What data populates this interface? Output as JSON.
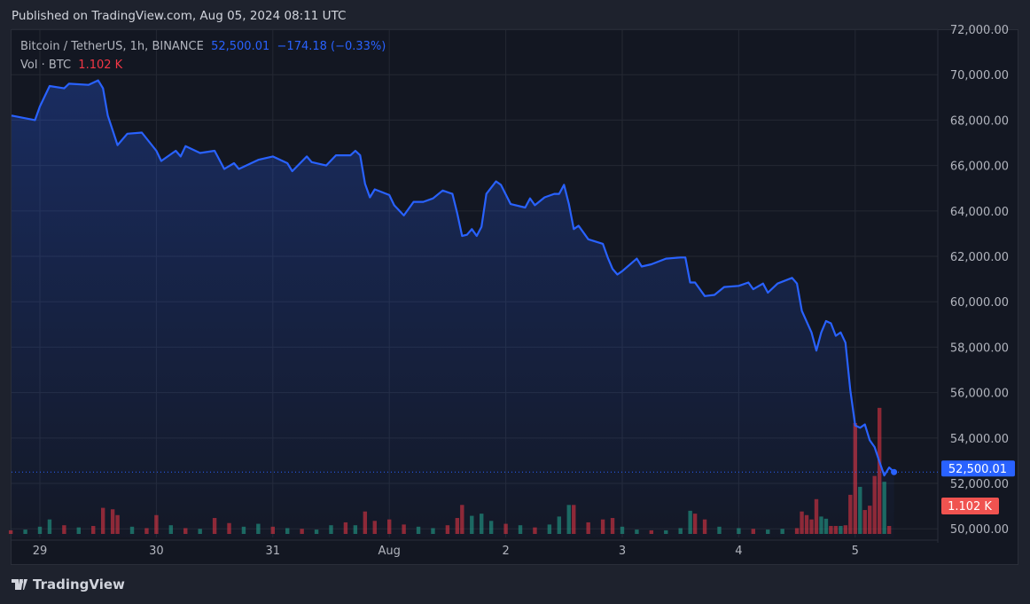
{
  "header": {
    "published": "Published on TradingView.com, Aug 05, 2024 08:11 UTC"
  },
  "legend": {
    "symbol": "Bitcoin / TetherUS, 1h, BINANCE",
    "last_price": "52,500.01",
    "change": "−174.18 (−0.33%)",
    "volume_label": "Vol · BTC",
    "volume_value": "1.102 K"
  },
  "branding": {
    "name": "TradingView",
    "icon": "tradingview-logo-icon"
  },
  "colors": {
    "line": "#2962ff",
    "up": "#22ab94",
    "down": "#f23645",
    "price_tag": "#2962ff",
    "volume_tag": "#f05350"
  },
  "chart_data": {
    "type": "area",
    "ylim": [
      50000,
      72000
    ],
    "y_ticks": [
      "72,000.00",
      "70,000.00",
      "68,000.00",
      "66,000.00",
      "64,000.00",
      "62,000.00",
      "60,000.00",
      "58,000.00",
      "56,000.00",
      "54,000.00",
      "52,000.00",
      "50,000.00"
    ],
    "x_ticks": [
      {
        "label": "29",
        "date": "2024-07-29T00:00"
      },
      {
        "label": "30",
        "date": "2024-07-30T00:00"
      },
      {
        "label": "31",
        "date": "2024-07-31T00:00"
      },
      {
        "label": "Aug",
        "date": "2024-08-01T00:00"
      },
      {
        "label": "2",
        "date": "2024-08-02T00:00"
      },
      {
        "label": "3",
        "date": "2024-08-03T00:00"
      },
      {
        "label": "4",
        "date": "2024-08-04T00:00"
      },
      {
        "label": "5",
        "date": "2024-08-05T00:00"
      }
    ],
    "grid": true,
    "price_label": "52,500.01",
    "volume_label": "1.102 K",
    "series": [
      {
        "points": [
          [
            "2024-07-28T18:00",
            68200
          ],
          [
            "2024-07-28T23:00",
            68000
          ],
          [
            "2024-07-29T00:00",
            68600
          ],
          [
            "2024-07-29T02:00",
            69500
          ],
          [
            "2024-07-29T05:00",
            69400
          ],
          [
            "2024-07-29T06:00",
            69600
          ],
          [
            "2024-07-29T10:00",
            69550
          ],
          [
            "2024-07-29T12:00",
            69750
          ],
          [
            "2024-07-29T13:00",
            69400
          ],
          [
            "2024-07-29T14:00",
            68200
          ],
          [
            "2024-07-29T16:00",
            66900
          ],
          [
            "2024-07-29T18:00",
            67400
          ],
          [
            "2024-07-29T21:00",
            67450
          ],
          [
            "2024-07-30T00:00",
            66650
          ],
          [
            "2024-07-30T01:00",
            66200
          ],
          [
            "2024-07-30T04:00",
            66650
          ],
          [
            "2024-07-30T05:00",
            66400
          ],
          [
            "2024-07-30T06:00",
            66850
          ],
          [
            "2024-07-30T09:00",
            66550
          ],
          [
            "2024-07-30T12:00",
            66650
          ],
          [
            "2024-07-30T14:00",
            65850
          ],
          [
            "2024-07-30T16:00",
            66100
          ],
          [
            "2024-07-30T17:00",
            65850
          ],
          [
            "2024-07-30T21:00",
            66250
          ],
          [
            "2024-07-31T00:00",
            66400
          ],
          [
            "2024-07-31T03:00",
            66100
          ],
          [
            "2024-07-31T04:00",
            65750
          ],
          [
            "2024-07-31T07:00",
            66400
          ],
          [
            "2024-07-31T08:00",
            66150
          ],
          [
            "2024-07-31T11:00",
            66000
          ],
          [
            "2024-07-31T13:00",
            66450
          ],
          [
            "2024-07-31T16:00",
            66450
          ],
          [
            "2024-07-31T17:00",
            66650
          ],
          [
            "2024-07-31T18:00",
            66450
          ],
          [
            "2024-07-31T19:00",
            65200
          ],
          [
            "2024-07-31T20:00",
            64600
          ],
          [
            "2024-07-31T21:00",
            64950
          ],
          [
            "2024-08-01T00:00",
            64700
          ],
          [
            "2024-08-01T01:00",
            64250
          ],
          [
            "2024-08-01T03:00",
            63800
          ],
          [
            "2024-08-01T05:00",
            64400
          ],
          [
            "2024-08-01T07:00",
            64400
          ],
          [
            "2024-08-01T09:00",
            64550
          ],
          [
            "2024-08-01T11:00",
            64900
          ],
          [
            "2024-08-01T13:00",
            64750
          ],
          [
            "2024-08-01T14:00",
            63900
          ],
          [
            "2024-08-01T15:00",
            62900
          ],
          [
            "2024-08-01T16:00",
            62950
          ],
          [
            "2024-08-01T17:00",
            63200
          ],
          [
            "2024-08-01T18:00",
            62900
          ],
          [
            "2024-08-01T19:00",
            63300
          ],
          [
            "2024-08-01T20:00",
            64750
          ],
          [
            "2024-08-01T22:00",
            65300
          ],
          [
            "2024-08-01T23:00",
            65150
          ],
          [
            "2024-08-02T01:00",
            64300
          ],
          [
            "2024-08-02T04:00",
            64150
          ],
          [
            "2024-08-02T05:00",
            64550
          ],
          [
            "2024-08-02T06:00",
            64250
          ],
          [
            "2024-08-02T08:00",
            64600
          ],
          [
            "2024-08-02T10:00",
            64750
          ],
          [
            "2024-08-02T11:00",
            64750
          ],
          [
            "2024-08-02T12:00",
            65150
          ],
          [
            "2024-08-02T13:00",
            64300
          ],
          [
            "2024-08-02T14:00",
            63200
          ],
          [
            "2024-08-02T15:00",
            63350
          ],
          [
            "2024-08-02T17:00",
            62750
          ],
          [
            "2024-08-02T20:00",
            62550
          ],
          [
            "2024-08-02T21:00",
            61950
          ],
          [
            "2024-08-02T22:00",
            61450
          ],
          [
            "2024-08-02T23:00",
            61200
          ],
          [
            "2024-08-03T00:00",
            61350
          ],
          [
            "2024-08-03T03:00",
            61900
          ],
          [
            "2024-08-03T04:00",
            61550
          ],
          [
            "2024-08-03T06:00",
            61650
          ],
          [
            "2024-08-03T09:00",
            61900
          ],
          [
            "2024-08-03T12:00",
            61950
          ],
          [
            "2024-08-03T13:00",
            61950
          ],
          [
            "2024-08-03T14:00",
            60850
          ],
          [
            "2024-08-03T15:00",
            60850
          ],
          [
            "2024-08-03T17:00",
            60250
          ],
          [
            "2024-08-03T19:00",
            60300
          ],
          [
            "2024-08-03T21:00",
            60650
          ],
          [
            "2024-08-04T00:00",
            60700
          ],
          [
            "2024-08-04T02:00",
            60850
          ],
          [
            "2024-08-04T03:00",
            60550
          ],
          [
            "2024-08-04T05:00",
            60800
          ],
          [
            "2024-08-04T06:00",
            60400
          ],
          [
            "2024-08-04T08:00",
            60800
          ],
          [
            "2024-08-04T11:00",
            61050
          ],
          [
            "2024-08-04T12:00",
            60800
          ],
          [
            "2024-08-04T13:00",
            59600
          ],
          [
            "2024-08-04T15:00",
            58650
          ],
          [
            "2024-08-04T16:00",
            57850
          ],
          [
            "2024-08-04T17:00",
            58650
          ],
          [
            "2024-08-04T18:00",
            59150
          ],
          [
            "2024-08-04T19:00",
            59050
          ],
          [
            "2024-08-04T20:00",
            58500
          ],
          [
            "2024-08-04T21:00",
            58650
          ],
          [
            "2024-08-04T22:00",
            58200
          ],
          [
            "2024-08-04T23:00",
            56100
          ],
          [
            "2024-08-05T00:00",
            54550
          ],
          [
            "2024-08-05T01:00",
            54450
          ],
          [
            "2024-08-05T02:00",
            54600
          ],
          [
            "2024-08-05T03:00",
            53900
          ],
          [
            "2024-08-05T04:00",
            53600
          ],
          [
            "2024-08-05T05:00",
            52950
          ],
          [
            "2024-08-05T06:00",
            52350
          ],
          [
            "2024-08-05T07:00",
            52700
          ],
          [
            "2024-08-05T08:00",
            52500
          ]
        ]
      }
    ],
    "volume_k_btc": [
      [
        "2024-07-28T18:00",
        0.5,
        "down"
      ],
      [
        "2024-07-28T21:00",
        0.6,
        "up"
      ],
      [
        "2024-07-29T00:00",
        1.0,
        "up"
      ],
      [
        "2024-07-29T02:00",
        2.0,
        "up"
      ],
      [
        "2024-07-29T05:00",
        1.2,
        "down"
      ],
      [
        "2024-07-29T08:00",
        0.9,
        "up"
      ],
      [
        "2024-07-29T11:00",
        1.1,
        "down"
      ],
      [
        "2024-07-29T13:00",
        3.6,
        "down"
      ],
      [
        "2024-07-29T15:00",
        3.4,
        "down"
      ],
      [
        "2024-07-29T16:00",
        2.6,
        "down"
      ],
      [
        "2024-07-29T19:00",
        1.0,
        "up"
      ],
      [
        "2024-07-29T22:00",
        0.8,
        "down"
      ],
      [
        "2024-07-30T00:00",
        2.6,
        "down"
      ],
      [
        "2024-07-30T03:00",
        1.2,
        "up"
      ],
      [
        "2024-07-30T06:00",
        0.8,
        "down"
      ],
      [
        "2024-07-30T09:00",
        0.7,
        "up"
      ],
      [
        "2024-07-30T12:00",
        2.2,
        "down"
      ],
      [
        "2024-07-30T15:00",
        1.5,
        "down"
      ],
      [
        "2024-07-30T18:00",
        1.0,
        "up"
      ],
      [
        "2024-07-30T21:00",
        1.4,
        "up"
      ],
      [
        "2024-07-31T00:00",
        1.0,
        "down"
      ],
      [
        "2024-07-31T03:00",
        0.8,
        "up"
      ],
      [
        "2024-07-31T06:00",
        0.7,
        "down"
      ],
      [
        "2024-07-31T09:00",
        0.6,
        "up"
      ],
      [
        "2024-07-31T12:00",
        1.2,
        "up"
      ],
      [
        "2024-07-31T15:00",
        1.6,
        "down"
      ],
      [
        "2024-07-31T17:00",
        1.2,
        "up"
      ],
      [
        "2024-07-31T19:00",
        3.1,
        "down"
      ],
      [
        "2024-07-31T21:00",
        1.8,
        "down"
      ],
      [
        "2024-08-01T00:00",
        2.0,
        "down"
      ],
      [
        "2024-08-01T03:00",
        1.3,
        "down"
      ],
      [
        "2024-08-01T06:00",
        1.0,
        "up"
      ],
      [
        "2024-08-01T09:00",
        0.8,
        "up"
      ],
      [
        "2024-08-01T12:00",
        1.2,
        "down"
      ],
      [
        "2024-08-01T14:00",
        2.2,
        "down"
      ],
      [
        "2024-08-01T15:00",
        4.0,
        "down"
      ],
      [
        "2024-08-01T17:00",
        2.5,
        "up"
      ],
      [
        "2024-08-01T19:00",
        2.8,
        "up"
      ],
      [
        "2024-08-01T21:00",
        1.8,
        "up"
      ],
      [
        "2024-08-02T00:00",
        1.4,
        "down"
      ],
      [
        "2024-08-02T03:00",
        1.2,
        "up"
      ],
      [
        "2024-08-02T06:00",
        0.9,
        "down"
      ],
      [
        "2024-08-02T09:00",
        1.3,
        "up"
      ],
      [
        "2024-08-02T11:00",
        2.4,
        "up"
      ],
      [
        "2024-08-02T13:00",
        4.0,
        "up"
      ],
      [
        "2024-08-02T14:00",
        4.0,
        "down"
      ],
      [
        "2024-08-02T17:00",
        1.6,
        "down"
      ],
      [
        "2024-08-02T20:00",
        2.0,
        "down"
      ],
      [
        "2024-08-02T22:00",
        2.2,
        "down"
      ],
      [
        "2024-08-03T00:00",
        1.0,
        "up"
      ],
      [
        "2024-08-03T03:00",
        0.6,
        "up"
      ],
      [
        "2024-08-03T06:00",
        0.5,
        "down"
      ],
      [
        "2024-08-03T09:00",
        0.5,
        "up"
      ],
      [
        "2024-08-03T12:00",
        0.8,
        "up"
      ],
      [
        "2024-08-03T14:00",
        3.2,
        "up"
      ],
      [
        "2024-08-03T15:00",
        2.8,
        "down"
      ],
      [
        "2024-08-03T17:00",
        2.0,
        "down"
      ],
      [
        "2024-08-03T20:00",
        1.0,
        "up"
      ],
      [
        "2024-08-04T00:00",
        0.8,
        "up"
      ],
      [
        "2024-08-04T03:00",
        0.7,
        "down"
      ],
      [
        "2024-08-04T06:00",
        0.6,
        "up"
      ],
      [
        "2024-08-04T09:00",
        0.7,
        "up"
      ],
      [
        "2024-08-04T12:00",
        0.8,
        "down"
      ],
      [
        "2024-08-04T13:00",
        3.1,
        "down"
      ],
      [
        "2024-08-04T14:00",
        2.6,
        "down"
      ],
      [
        "2024-08-04T15:00",
        2.0,
        "down"
      ],
      [
        "2024-08-04T16:00",
        4.8,
        "down"
      ],
      [
        "2024-08-04T17:00",
        2.4,
        "up"
      ],
      [
        "2024-08-04T18:00",
        2.1,
        "up"
      ],
      [
        "2024-08-04T19:00",
        1.1,
        "down"
      ],
      [
        "2024-08-04T20:00",
        1.1,
        "down"
      ],
      [
        "2024-08-04T21:00",
        1.1,
        "up"
      ],
      [
        "2024-08-04T22:00",
        1.2,
        "down"
      ],
      [
        "2024-08-04T23:00",
        5.4,
        "down"
      ],
      [
        "2024-08-05T00:00",
        15.3,
        "down"
      ],
      [
        "2024-08-05T01:00",
        6.5,
        "up"
      ],
      [
        "2024-08-05T02:00",
        3.3,
        "down"
      ],
      [
        "2024-08-05T03:00",
        3.9,
        "down"
      ],
      [
        "2024-08-05T04:00",
        8.0,
        "down"
      ],
      [
        "2024-08-05T05:00",
        17.4,
        "down"
      ],
      [
        "2024-08-05T06:00",
        7.2,
        "up"
      ],
      [
        "2024-08-05T07:00",
        1.102,
        "down"
      ]
    ]
  }
}
